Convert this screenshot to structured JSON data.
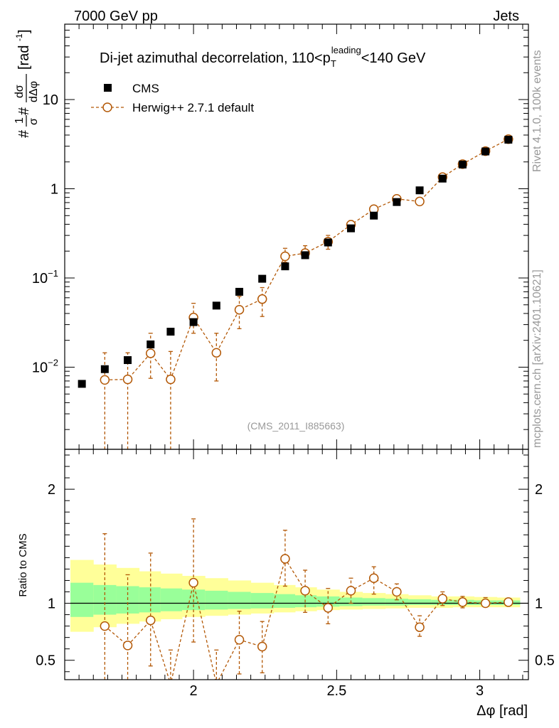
{
  "header": {
    "left": "7000 GeV pp",
    "right": "Jets"
  },
  "side_text": {
    "top": "Rivet 4.1.0,  100k events",
    "bottom": "mcplots.cern.ch [arXiv:2401.10621]"
  },
  "analysis_tag": "(CMS_2011_I885663)",
  "chart_data": [
    {
      "type": "scatter",
      "title": "Di-jet azimuthal decorrelation, 110<p_T^leading<140 GeV",
      "title_parts": {
        "main": "Di-jet azimuthal decorrelation, 110<p",
        "sup": "leading",
        "sub": "T",
        "end": "<140 GeV"
      },
      "ylabel": "#frac{1}{σ}#frac{dσ}{dΔφ} [rad⁻¹]",
      "ylabel_parts": {
        "n1": "1",
        "d1": "σ",
        "n2": "dσ",
        "d2": "dΔφ",
        "unit": "[rad",
        "unit_sup": "-1",
        "unit_end": "]",
        "hash": "#"
      },
      "yscale": "log",
      "xlim": [
        1.55,
        3.17
      ],
      "ylim": [
        0.0012,
        70
      ],
      "y_ticks": [
        {
          "value": 0.01,
          "base": "10",
          "exp": "−2"
        },
        {
          "value": 0.1,
          "base": "10",
          "exp": "−1"
        },
        {
          "value": 1,
          "label": "1"
        },
        {
          "value": 10,
          "label": "10"
        }
      ],
      "legend": [
        {
          "name": "CMS",
          "marker": "filled-square",
          "color": "#000000"
        },
        {
          "name": "Herwig++ 2.7.1 default",
          "marker": "open-circle",
          "color": "#b35806"
        }
      ],
      "series": [
        {
          "name": "CMS",
          "x": [
            1.61,
            1.69,
            1.77,
            1.85,
            1.92,
            2.0,
            2.08,
            2.16,
            2.24,
            2.32,
            2.39,
            2.47,
            2.55,
            2.63,
            2.71,
            2.79,
            2.87,
            2.94,
            3.02,
            3.1
          ],
          "y": [
            0.0065,
            0.0095,
            0.012,
            0.018,
            0.025,
            0.032,
            0.049,
            0.07,
            0.098,
            0.135,
            0.18,
            0.25,
            0.36,
            0.5,
            0.71,
            0.96,
            1.3,
            1.87,
            2.62,
            3.55
          ]
        },
        {
          "name": "Herwig++ 2.7.1 default",
          "x": [
            1.69,
            1.77,
            1.85,
            1.92,
            2.0,
            2.08,
            2.16,
            2.24,
            2.32,
            2.39,
            2.47,
            2.55,
            2.63,
            2.71,
            2.79,
            2.87,
            2.94,
            3.02,
            3.1
          ],
          "y": [
            0.0072,
            0.0073,
            0.0143,
            0.0073,
            0.036,
            0.0145,
            0.044,
            0.058,
            0.175,
            0.19,
            0.255,
            0.395,
            0.59,
            0.77,
            0.72,
            1.35,
            1.89,
            2.64,
            3.6
          ],
          "y_low": [
            0.0001,
            0.0001,
            0.0075,
            0.0001,
            0.024,
            0.007,
            0.027,
            0.037,
            0.15,
            0.165,
            0.21,
            0.35,
            0.54,
            0.72,
            0.66,
            1.27,
            1.8,
            2.55,
            3.47
          ],
          "y_high": [
            0.0145,
            0.0145,
            0.024,
            0.015,
            0.052,
            0.024,
            0.062,
            0.078,
            0.215,
            0.23,
            0.3,
            0.44,
            0.64,
            0.82,
            0.78,
            1.43,
            1.98,
            2.73,
            3.72
          ]
        }
      ]
    },
    {
      "type": "scatter",
      "ylabel": "Ratio to CMS",
      "xlabel": "Δφ [rad]",
      "xlim": [
        1.55,
        3.17
      ],
      "ylim": [
        0.33,
        2.35
      ],
      "x_ticks": [
        {
          "value": 2,
          "label": "2"
        },
        {
          "value": 2.5,
          "label": "2.5"
        },
        {
          "value": 3,
          "label": "3"
        }
      ],
      "y_ticks": [
        {
          "value": 0.5,
          "label": "0.5"
        },
        {
          "value": 1,
          "label": "1"
        },
        {
          "value": 2,
          "label": "2"
        }
      ],
      "bands": {
        "edges": [
          1.57,
          1.65,
          1.73,
          1.81,
          1.885,
          1.96,
          2.04,
          2.12,
          2.2,
          2.28,
          2.355,
          2.43,
          2.51,
          2.59,
          2.67,
          2.75,
          2.83,
          2.905,
          2.98,
          3.06,
          3.14
        ],
        "yellow_low": [
          0.75,
          0.79,
          0.82,
          0.84,
          0.86,
          0.88,
          0.89,
          0.9,
          0.91,
          0.92,
          0.93,
          0.94,
          0.945,
          0.95,
          0.955,
          0.96,
          0.96,
          0.965,
          0.965,
          0.965
        ],
        "yellow_high": [
          1.38,
          1.34,
          1.31,
          1.28,
          1.26,
          1.24,
          1.22,
          1.2,
          1.18,
          1.16,
          1.14,
          1.12,
          1.1,
          1.09,
          1.08,
          1.07,
          1.06,
          1.06,
          1.055,
          1.05
        ],
        "green_low": [
          0.88,
          0.9,
          0.91,
          0.92,
          0.93,
          0.94,
          0.945,
          0.95,
          0.955,
          0.96,
          0.965,
          0.97,
          0.975,
          0.98,
          0.98,
          0.985,
          0.985,
          0.985,
          0.985,
          0.985
        ],
        "green_high": [
          1.18,
          1.16,
          1.15,
          1.14,
          1.13,
          1.12,
          1.11,
          1.1,
          1.09,
          1.08,
          1.07,
          1.06,
          1.05,
          1.045,
          1.04,
          1.035,
          1.03,
          1.03,
          1.025,
          1.025
        ],
        "yellow_color": "#ffff99",
        "green_color": "#99ff99"
      },
      "series": [
        {
          "name": "Herwig++ 2.7.1 default / CMS",
          "x": [
            1.69,
            1.77,
            1.85,
            1.92,
            2.0,
            2.08,
            2.16,
            2.24,
            2.32,
            2.39,
            2.47,
            2.55,
            2.63,
            2.71,
            2.79,
            2.87,
            2.94,
            3.02,
            3.1
          ],
          "y": [
            0.8,
            0.63,
            0.85,
            0.29,
            1.18,
            0.29,
            0.68,
            0.62,
            1.39,
            1.11,
            0.96,
            1.11,
            1.22,
            1.1,
            0.79,
            1.04,
            1.01,
            1.0,
            1.01
          ],
          "y_low": [
            0.01,
            0.01,
            0.45,
            0.01,
            0.66,
            0.01,
            0.38,
            0.39,
            1.15,
            0.92,
            0.82,
            1.0,
            1.08,
            1.03,
            0.71,
            0.98,
            0.96,
            0.97,
            0.98
          ],
          "y_high": [
            1.61,
            1.25,
            1.44,
            0.59,
            1.74,
            0.59,
            0.93,
            0.84,
            1.64,
            1.29,
            1.13,
            1.22,
            1.32,
            1.17,
            0.89,
            1.1,
            1.06,
            1.05,
            1.04
          ]
        }
      ]
    }
  ]
}
